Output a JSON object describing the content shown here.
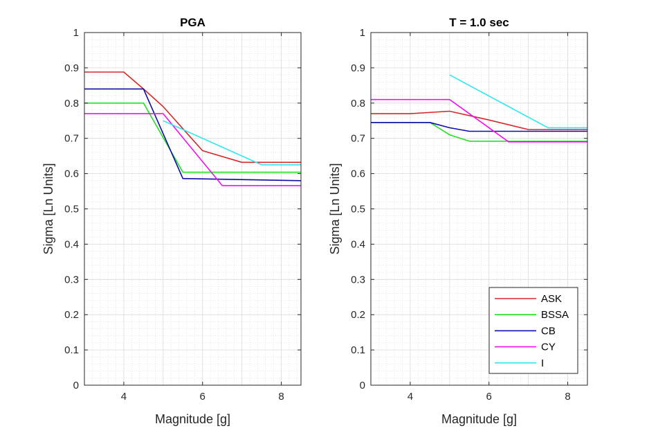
{
  "chart_data": [
    {
      "type": "line",
      "title": "PGA",
      "xlabel": "Magnitude [g]",
      "ylabel": "Sigma [Ln Units]",
      "xlim": [
        3,
        8.5
      ],
      "ylim": [
        0,
        1
      ],
      "xticks": [
        4,
        6,
        8
      ],
      "yticks": [
        0,
        0.1,
        0.2,
        0.3,
        0.4,
        0.5,
        0.6,
        0.7,
        0.8,
        0.9,
        1
      ],
      "grid": true,
      "minor_grid": true,
      "legend": null,
      "series": [
        {
          "name": "ASK",
          "color": "#d62728",
          "x": [
            3,
            4,
            4.5,
            5,
            6,
            7,
            8.5
          ],
          "y": [
            0.888,
            0.888,
            0.84,
            0.79,
            0.665,
            0.632,
            0.632
          ]
        },
        {
          "name": "BSSA",
          "color": "#22e022",
          "x": [
            3,
            4.5,
            5.5,
            8.5
          ],
          "y": [
            0.8,
            0.8,
            0.604,
            0.604
          ]
        },
        {
          "name": "CB",
          "color": "#0b0ba8",
          "x": [
            3,
            4.5,
            5.5,
            8.5
          ],
          "y": [
            0.84,
            0.84,
            0.586,
            0.58
          ]
        },
        {
          "name": "CY",
          "color": "#f50ff0",
          "x": [
            3,
            5,
            6.5,
            8.5
          ],
          "y": [
            0.77,
            0.77,
            0.566,
            0.566
          ]
        },
        {
          "name": "I",
          "color": "#2ee6f0",
          "x": [
            5,
            7.5,
            8.5
          ],
          "y": [
            0.75,
            0.625,
            0.625
          ]
        }
      ]
    },
    {
      "type": "line",
      "title": "T = 1.0 sec",
      "xlabel": "Magnitude [g]",
      "ylabel": "Sigma [Ln Units]",
      "xlim": [
        3,
        8.5
      ],
      "ylim": [
        0,
        1
      ],
      "xticks": [
        4,
        6,
        8
      ],
      "yticks": [
        0,
        0.1,
        0.2,
        0.3,
        0.4,
        0.5,
        0.6,
        0.7,
        0.8,
        0.9,
        1
      ],
      "grid": true,
      "minor_grid": true,
      "legend": "bottom-right",
      "series": [
        {
          "name": "ASK",
          "color": "#d62728",
          "x": [
            3,
            4,
            5,
            6,
            7,
            8.5
          ],
          "y": [
            0.77,
            0.77,
            0.777,
            0.752,
            0.725,
            0.725
          ]
        },
        {
          "name": "BSSA",
          "color": "#22e022",
          "x": [
            3,
            4.5,
            5,
            5.5,
            8.5
          ],
          "y": [
            0.745,
            0.745,
            0.71,
            0.692,
            0.692
          ]
        },
        {
          "name": "CB",
          "color": "#0b0ba8",
          "x": [
            3,
            4.5,
            5,
            5.5,
            8.5
          ],
          "y": [
            0.745,
            0.745,
            0.73,
            0.72,
            0.72
          ]
        },
        {
          "name": "CY",
          "color": "#f50ff0",
          "x": [
            3,
            5,
            6.5,
            8.5
          ],
          "y": [
            0.81,
            0.81,
            0.69,
            0.69
          ]
        },
        {
          "name": "I",
          "color": "#2ee6f0",
          "x": [
            5,
            7.5,
            8.5
          ],
          "y": [
            0.88,
            0.73,
            0.73
          ]
        }
      ]
    }
  ]
}
